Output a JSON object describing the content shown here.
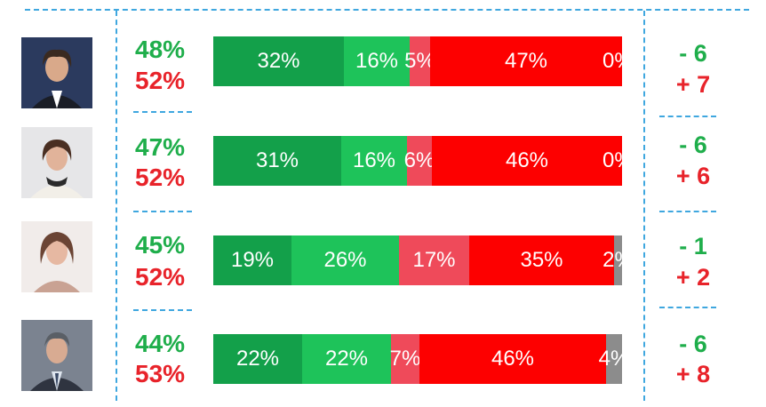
{
  "chart_data": {
    "type": "bar",
    "stacked": true,
    "orientation": "horizontal",
    "colors": [
      "#13a04a",
      "#1ec35a",
      "#ef4a5a",
      "#fd0000",
      "#8c8c8c"
    ],
    "rows": [
      {
        "avatar": "person-photo-1",
        "positive_total": "48%",
        "negative_total": "52%",
        "values": [
          32,
          16,
          5,
          47,
          0
        ],
        "labels": [
          "32%",
          "16%",
          "5%",
          "47%",
          "0%"
        ],
        "delta_positive": "- 6",
        "delta_negative": "+ 7"
      },
      {
        "avatar": "person-photo-2",
        "positive_total": "47%",
        "negative_total": "52%",
        "values": [
          31,
          16,
          6,
          46,
          0
        ],
        "labels": [
          "31%",
          "16%",
          "6%",
          "46%",
          "0%"
        ],
        "delta_positive": "- 6",
        "delta_negative": "+ 6"
      },
      {
        "avatar": "person-photo-3",
        "positive_total": "45%",
        "negative_total": "52%",
        "values": [
          19,
          26,
          17,
          35,
          2
        ],
        "labels": [
          "19%",
          "26%",
          "17%",
          "35%",
          "2%"
        ],
        "delta_positive": "- 1",
        "delta_negative": "+ 2"
      },
      {
        "avatar": "person-photo-4",
        "positive_total": "44%",
        "negative_total": "53%",
        "values": [
          22,
          22,
          7,
          46,
          4
        ],
        "labels": [
          "22%",
          "22%",
          "7%",
          "46%",
          "4%"
        ],
        "delta_positive": "- 6",
        "delta_negative": "+ 8"
      }
    ]
  }
}
